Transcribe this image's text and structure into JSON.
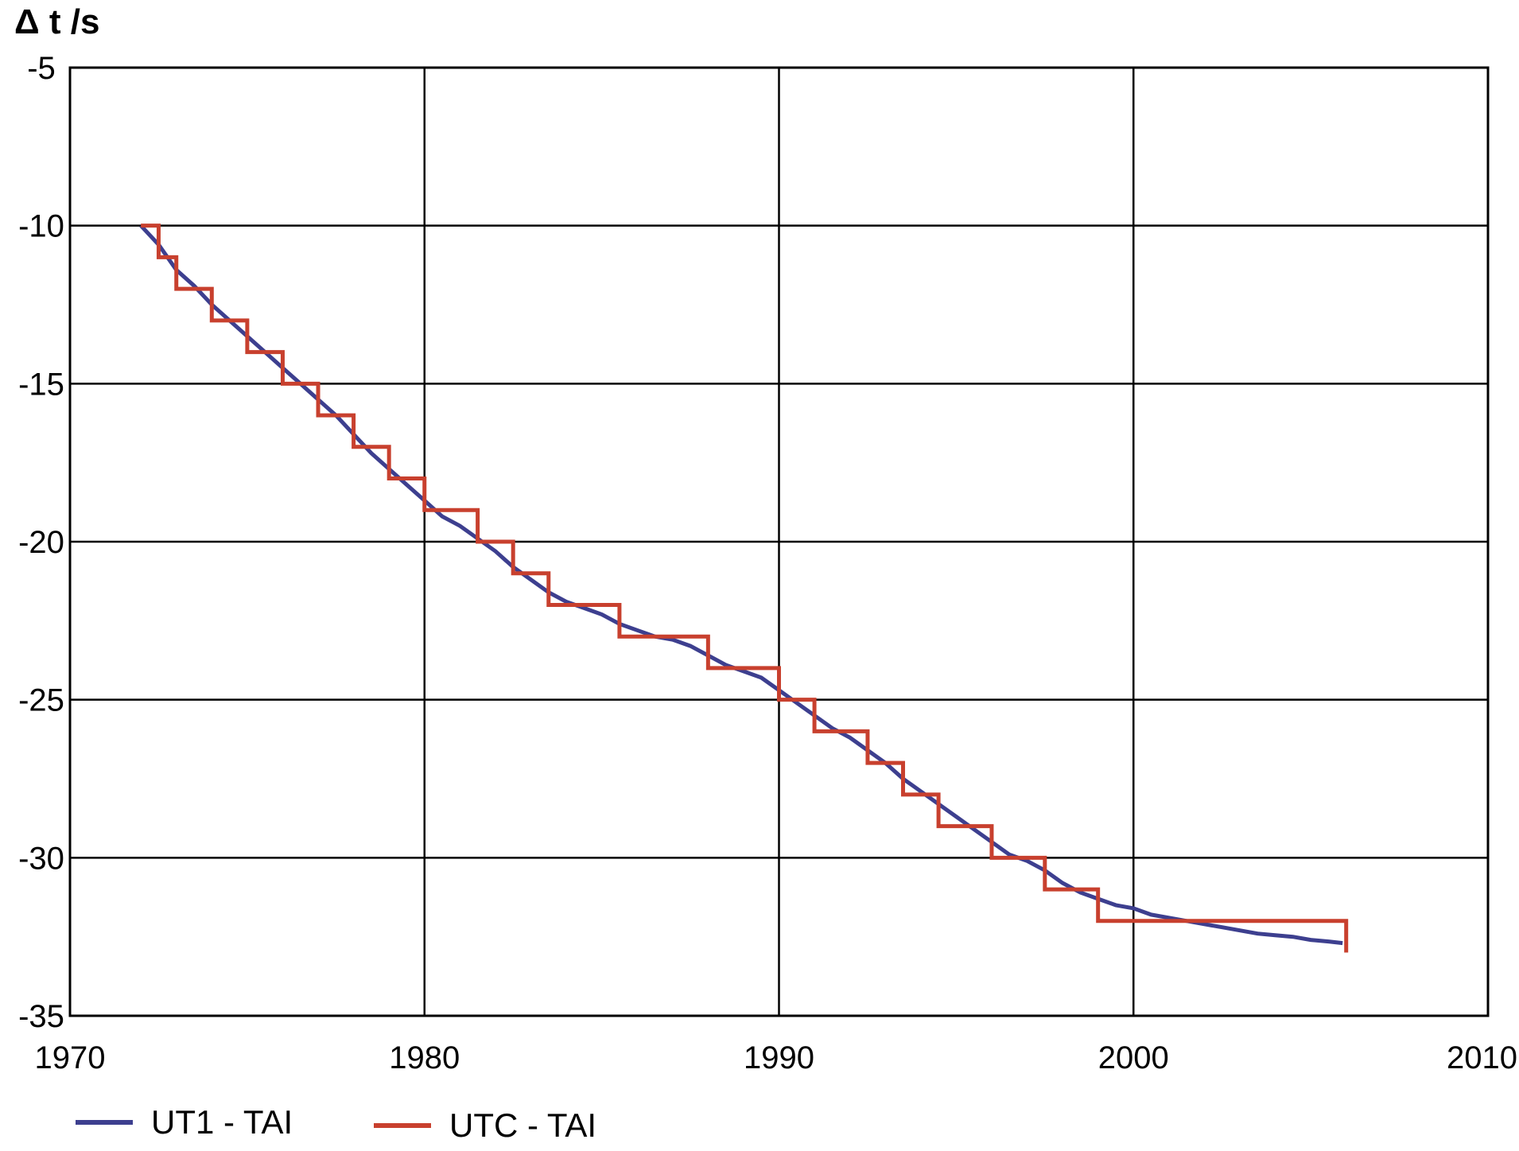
{
  "chart_data": {
    "type": "line",
    "ylabel": "Δ t /s",
    "xlabel": "",
    "title": "",
    "xlim": [
      1970,
      2010
    ],
    "ylim": [
      -35,
      -5
    ],
    "xticks": [
      "1970",
      "1980",
      "1990",
      "2000",
      "2010"
    ],
    "yticks": [
      "-5",
      "-10",
      "-15",
      "-20",
      "-25",
      "-30",
      "-35"
    ],
    "grid": true,
    "legend_position": "bottom-left",
    "series": [
      {
        "name": "UT1 - TAI",
        "color": "#3d3f8f",
        "step": false,
        "points": [
          [
            1972.0,
            -10.0
          ],
          [
            1972.5,
            -10.6
          ],
          [
            1973.0,
            -11.4
          ],
          [
            1973.5,
            -11.9
          ],
          [
            1974.0,
            -12.5
          ],
          [
            1974.5,
            -13.0
          ],
          [
            1975.0,
            -13.5
          ],
          [
            1975.5,
            -14.0
          ],
          [
            1976.0,
            -14.5
          ],
          [
            1976.5,
            -15.0
          ],
          [
            1977.0,
            -15.5
          ],
          [
            1977.5,
            -16.0
          ],
          [
            1978.0,
            -16.6
          ],
          [
            1978.5,
            -17.2
          ],
          [
            1979.0,
            -17.7
          ],
          [
            1979.5,
            -18.2
          ],
          [
            1980.0,
            -18.7
          ],
          [
            1980.5,
            -19.2
          ],
          [
            1981.0,
            -19.5
          ],
          [
            1981.5,
            -19.9
          ],
          [
            1982.0,
            -20.3
          ],
          [
            1982.5,
            -20.8
          ],
          [
            1983.0,
            -21.2
          ],
          [
            1983.5,
            -21.6
          ],
          [
            1984.0,
            -21.9
          ],
          [
            1984.5,
            -22.1
          ],
          [
            1985.0,
            -22.3
          ],
          [
            1985.5,
            -22.6
          ],
          [
            1986.0,
            -22.8
          ],
          [
            1986.5,
            -23.0
          ],
          [
            1987.0,
            -23.1
          ],
          [
            1987.5,
            -23.3
          ],
          [
            1988.0,
            -23.6
          ],
          [
            1988.5,
            -23.9
          ],
          [
            1989.0,
            -24.1
          ],
          [
            1989.5,
            -24.3
          ],
          [
            1990.0,
            -24.7
          ],
          [
            1990.5,
            -25.1
          ],
          [
            1991.0,
            -25.5
          ],
          [
            1991.5,
            -25.9
          ],
          [
            1992.0,
            -26.2
          ],
          [
            1992.5,
            -26.6
          ],
          [
            1993.0,
            -27.0
          ],
          [
            1993.5,
            -27.5
          ],
          [
            1994.0,
            -27.9
          ],
          [
            1994.5,
            -28.3
          ],
          [
            1995.0,
            -28.7
          ],
          [
            1995.5,
            -29.1
          ],
          [
            1996.0,
            -29.5
          ],
          [
            1996.5,
            -29.9
          ],
          [
            1997.0,
            -30.1
          ],
          [
            1997.5,
            -30.4
          ],
          [
            1998.0,
            -30.8
          ],
          [
            1998.5,
            -31.1
          ],
          [
            1999.0,
            -31.3
          ],
          [
            1999.5,
            -31.5
          ],
          [
            2000.0,
            -31.6
          ],
          [
            2000.5,
            -31.8
          ],
          [
            2001.0,
            -31.9
          ],
          [
            2001.5,
            -32.0
          ],
          [
            2002.0,
            -32.1
          ],
          [
            2002.5,
            -32.2
          ],
          [
            2003.0,
            -32.3
          ],
          [
            2003.5,
            -32.4
          ],
          [
            2004.0,
            -32.45
          ],
          [
            2004.5,
            -32.5
          ],
          [
            2005.0,
            -32.6
          ],
          [
            2005.5,
            -32.65
          ],
          [
            2005.9,
            -32.7
          ]
        ]
      },
      {
        "name": "UTC - TAI",
        "color": "#c8402e",
        "step": true,
        "points": [
          [
            1972.0,
            -10
          ],
          [
            1972.5,
            -11
          ],
          [
            1973.0,
            -12
          ],
          [
            1974.0,
            -13
          ],
          [
            1975.0,
            -14
          ],
          [
            1976.0,
            -15
          ],
          [
            1977.0,
            -16
          ],
          [
            1978.0,
            -17
          ],
          [
            1979.0,
            -18
          ],
          [
            1980.0,
            -19
          ],
          [
            1981.5,
            -20
          ],
          [
            1982.5,
            -21
          ],
          [
            1983.5,
            -22
          ],
          [
            1985.5,
            -23
          ],
          [
            1988.0,
            -24
          ],
          [
            1990.0,
            -25
          ],
          [
            1991.0,
            -26
          ],
          [
            1992.5,
            -27
          ],
          [
            1993.5,
            -28
          ],
          [
            1994.5,
            -29
          ],
          [
            1996.0,
            -30
          ],
          [
            1997.5,
            -31
          ],
          [
            1999.0,
            -32
          ],
          [
            2006.0,
            -33
          ]
        ]
      }
    ]
  }
}
